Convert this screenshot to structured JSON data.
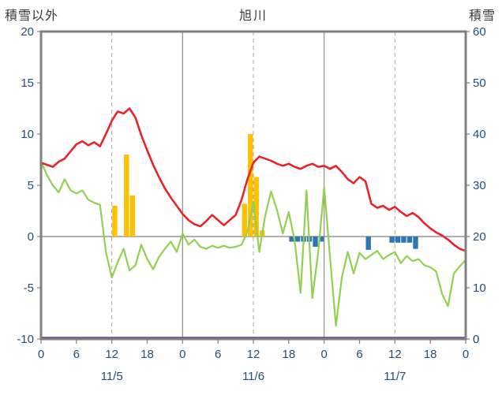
{
  "header": {
    "left_axis_title": "積雪以外",
    "chart_title": "旭川",
    "right_axis_title": "積雪"
  },
  "colors": {
    "temperature_red": "#e8232a",
    "green_series": "#92d050",
    "precip_orange": "#ffc000",
    "blue_bars": "#2e75b6",
    "snowdepth_purple": "#7030a0",
    "frame_gray": "#808080",
    "grid_gray": "#a6a6a6",
    "tick_label_blue": "#1F4E79",
    "title_gray": "#3a3a3a"
  },
  "chart_data": {
    "type": "line",
    "title": "旭川",
    "left_axis": {
      "label": "積雪以外",
      "min": -10,
      "max": 20,
      "ticks": [
        20,
        15,
        10,
        5,
        0,
        -5,
        -10
      ]
    },
    "right_axis": {
      "label": "積雪",
      "min": 0,
      "max": 60,
      "ticks": [
        60,
        50,
        40,
        30,
        20,
        10,
        0
      ]
    },
    "x_axis": {
      "hours_total": 72,
      "tick_hours": [
        0,
        6,
        12,
        18,
        24,
        30,
        36,
        42,
        48,
        54,
        60,
        66,
        72
      ],
      "tick_labels": [
        "0",
        "6",
        "12",
        "18",
        "0",
        "6",
        "12",
        "18",
        "0",
        "6",
        "12",
        "18",
        "0"
      ],
      "day_labels": [
        {
          "label": "11/5",
          "center_hour": 12
        },
        {
          "label": "11/6",
          "center_hour": 36
        },
        {
          "label": "11/7",
          "center_hour": 60
        }
      ]
    },
    "gridlines": {
      "vertical_dashed_hours": [
        12,
        36,
        60
      ],
      "vertical_solid_hours": [
        24,
        48
      ],
      "horizontal_zero_line": 0
    },
    "series": [
      {
        "name": "blue-bars",
        "type": "bar",
        "axis": "left",
        "color": "#2e75b6",
        "points": [
          {
            "hour": 42,
            "value": -0.5
          },
          {
            "hour": 43,
            "value": -0.5
          },
          {
            "hour": 44,
            "value": -0.5
          },
          {
            "hour": 45,
            "value": -0.5
          },
          {
            "hour": 46,
            "value": -1.0
          },
          {
            "hour": 47,
            "value": -0.5
          },
          {
            "hour": 55,
            "value": -1.3
          },
          {
            "hour": 59,
            "value": -0.6
          },
          {
            "hour": 60,
            "value": -0.6
          },
          {
            "hour": 61,
            "value": -0.6
          },
          {
            "hour": 62,
            "value": -0.6
          },
          {
            "hour": 63,
            "value": -1.2
          }
        ]
      },
      {
        "name": "orange-bars",
        "type": "bar",
        "axis": "left",
        "color": "#ffc000",
        "points": [
          {
            "hour": 12,
            "value": 3.0
          },
          {
            "hour": 14,
            "value": 8.0
          },
          {
            "hour": 15,
            "value": 4.0
          },
          {
            "hour": 34,
            "value": 3.2
          },
          {
            "hour": 35,
            "value": 10.0
          },
          {
            "hour": 36,
            "value": 5.8
          },
          {
            "hour": 37,
            "value": 0.6
          }
        ]
      },
      {
        "name": "green-line",
        "type": "line",
        "axis": "left",
        "color": "#92d050",
        "width": 2.2,
        "values": [
          7.3,
          6.0,
          5.0,
          4.3,
          5.6,
          4.5,
          4.2,
          4.5,
          3.6,
          3.3,
          3.1,
          -1.5,
          -4.0,
          -2.5,
          -1.2,
          -3.3,
          -2.8,
          -0.8,
          -2.2,
          -3.2,
          -2.0,
          -1.2,
          -0.5,
          -1.5,
          0.3,
          -0.8,
          -0.3,
          -1.0,
          -1.2,
          -0.9,
          -1.1,
          -0.9,
          -1.1,
          -1.0,
          -0.8,
          0.5,
          3.4,
          -1.5,
          2.0,
          4.4,
          2.6,
          0.3,
          2.4,
          -0.4,
          -5.5,
          4.5,
          -6.0,
          -1.5,
          4.8,
          -2.0,
          -8.7,
          -4.0,
          -1.5,
          -3.6,
          -1.6,
          -2.2,
          -1.8,
          -1.4,
          -2.2,
          -1.8,
          -1.5,
          -2.6,
          -1.9,
          -2.4,
          -2.2,
          -2.8,
          -3.0,
          -3.4,
          -5.6,
          -6.8,
          -3.6,
          -2.9,
          -2.3
        ]
      },
      {
        "name": "red-line",
        "type": "line",
        "axis": "left",
        "color": "#e8232a",
        "width": 2.6,
        "values": [
          7.2,
          7.0,
          6.8,
          7.3,
          7.6,
          8.3,
          9.0,
          9.3,
          8.9,
          9.2,
          8.8,
          10.0,
          11.3,
          12.2,
          12.0,
          12.5,
          11.6,
          9.9,
          8.4,
          7.0,
          5.8,
          4.7,
          3.8,
          3.0,
          2.2,
          1.6,
          1.2,
          1.0,
          1.5,
          2.1,
          1.6,
          1.1,
          1.6,
          2.1,
          3.6,
          5.6,
          7.2,
          7.8,
          7.6,
          7.4,
          7.1,
          6.9,
          7.1,
          6.8,
          6.6,
          6.9,
          7.1,
          6.8,
          6.9,
          6.6,
          6.9,
          6.3,
          5.6,
          5.2,
          5.8,
          5.4,
          3.2,
          2.8,
          3.0,
          2.6,
          2.9,
          2.4,
          2.0,
          2.3,
          1.9,
          1.3,
          0.8,
          0.4,
          0.1,
          -0.3,
          -0.8,
          -1.2,
          -1.4
        ]
      },
      {
        "name": "purple-line",
        "type": "line",
        "axis": "right",
        "color": "#7030a0",
        "width": 2.5,
        "constant_value": 0
      }
    ]
  }
}
